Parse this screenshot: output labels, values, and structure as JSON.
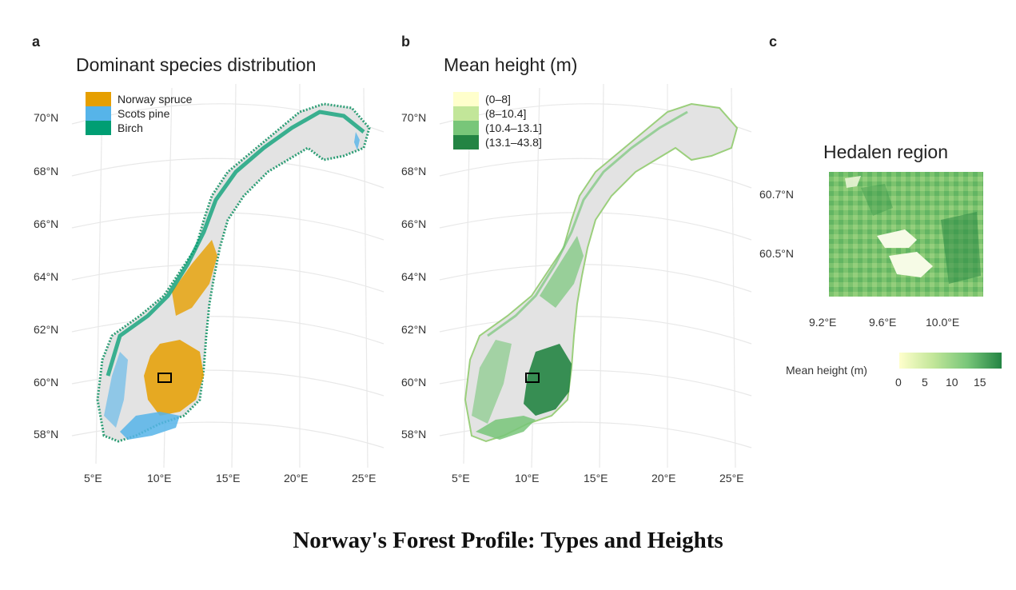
{
  "panels": {
    "a": {
      "letter": "a",
      "title": "Dominant species distribution",
      "legend": [
        {
          "label": "Norway spruce",
          "color": "#E69F00"
        },
        {
          "label": "Scots pine",
          "color": "#56B4E9"
        },
        {
          "label": "Birch",
          "color": "#009E73"
        }
      ]
    },
    "b": {
      "letter": "b",
      "title": "Mean height (m)",
      "legend": [
        {
          "label": "(0–8]",
          "color": "#FFFFCC"
        },
        {
          "label": "(8–10.4]",
          "color": "#C2E699"
        },
        {
          "label": "(10.4–13.1]",
          "color": "#78C679"
        },
        {
          "label": "(13.1–43.8]",
          "color": "#238443"
        }
      ]
    },
    "c": {
      "letter": "c",
      "title": "Hedalen region",
      "lat_ticks": [
        "60.7°N",
        "60.5°N"
      ],
      "lon_ticks": [
        "9.2°E",
        "9.6°E",
        "10.0°E"
      ],
      "colorbar": {
        "label": "Mean height (m)",
        "ticks": [
          "0",
          "5",
          "10",
          "15"
        ],
        "color_low": "#FFFFCC",
        "color_high": "#238443"
      }
    }
  },
  "map_axes": {
    "lat_ticks": [
      "70°N",
      "68°N",
      "66°N",
      "64°N",
      "62°N",
      "60°N",
      "58°N"
    ],
    "lon_ticks": [
      "5°E",
      "10°E",
      "15°E",
      "20°E",
      "25°E"
    ]
  },
  "colors": {
    "land": "#E3E3E3",
    "graticule": "#E8E8E8"
  },
  "caption": "Norway's Forest Profile: Types and Heights"
}
